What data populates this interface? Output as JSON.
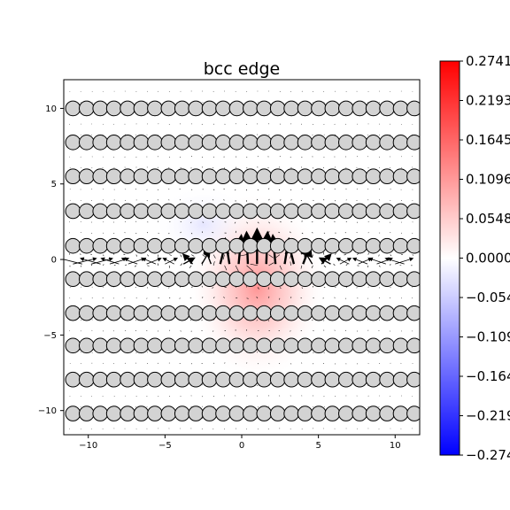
{
  "chart_data": {
    "type": "heatmap",
    "title": "bcc edge",
    "xlabel": "",
    "ylabel": "",
    "xlim": [
      -11.6,
      11.6
    ],
    "ylim": [
      -11.6,
      11.9
    ],
    "xticks": [
      -10,
      -5,
      0,
      5,
      10
    ],
    "yticks": [
      10,
      5,
      0,
      -5,
      -10
    ],
    "grid": false,
    "colormap": "bwr",
    "field": {
      "description_label": "",
      "peak_value": 0.2741,
      "peak_center": [
        1.0,
        -1.8
      ],
      "trough_value": -0.03,
      "trough_center": [
        -2.5,
        2.3
      ]
    },
    "atom_rows": [
      {
        "y": 10.0,
        "x_start": -11.0,
        "x_step": 0.89
      },
      {
        "y": 7.75,
        "x_start": -11.0,
        "x_step": 0.89
      },
      {
        "y": 5.5,
        "x_start": -11.0,
        "x_step": 0.89
      },
      {
        "y": 3.2,
        "x_start": -11.0,
        "x_step": 0.89
      },
      {
        "y": 0.9,
        "x_start": -11.0,
        "x_step": 0.89
      },
      {
        "y": -1.3,
        "x_start": -11.0,
        "x_step": 0.89
      },
      {
        "y": -3.55,
        "x_start": -11.0,
        "x_step": 0.89
      },
      {
        "y": -5.7,
        "x_start": -11.0,
        "x_step": 0.89
      },
      {
        "y": -7.95,
        "x_start": -11.0,
        "x_step": 0.89
      },
      {
        "y": -10.2,
        "x_start": -11.0,
        "x_step": 0.89
      }
    ],
    "atom_style": {
      "fill": "#d3d3d3",
      "stroke": "#000000"
    },
    "colorbar": {
      "ticks": [
        "0.2741",
        "0.2193",
        "0.1645",
        "0.1096",
        "0.0548",
        "0.0000",
        "-0.054",
        "-0.109",
        "-0.164",
        "-0.219",
        "-0.274"
      ],
      "max": 0.2741,
      "min": -0.2741,
      "top_color": "#ff0000",
      "mid_color": "#ffffff",
      "bottom_color": "#0000ff"
    }
  }
}
